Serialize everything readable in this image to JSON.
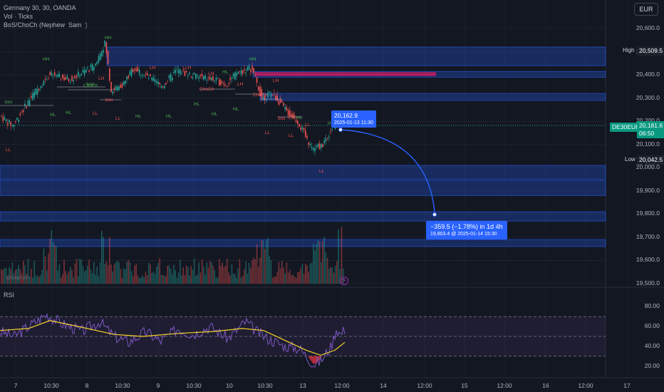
{
  "legend": {
    "symbol": "Germany 30, 30, OANDA",
    "volume": "Vol · Ticks",
    "indicator": "BoS/ChoCh (Nephew_Sam_)",
    "watermark": "@Nephew"
  },
  "currency_button": "EUR",
  "price_scale": [
    "20,600.0",
    "20,500.0",
    "20,400.0",
    "20,300.0",
    "20,200.0",
    "20,100.0",
    "20,000.0",
    "19,900.0",
    "19,800.0",
    "19,700.0",
    "19,600.0",
    "19,500.0"
  ],
  "tags": {
    "high_label": "High",
    "high_value": "20,509.5",
    "low_label": "Low",
    "low_value": "20,042.5",
    "symbol_tag": "DE30EUR",
    "current_price": "20,181.6",
    "countdown": "06:50"
  },
  "rsi": {
    "label": "RSI",
    "scale": [
      "80.00",
      "60.00",
      "40.00",
      "20.00"
    ]
  },
  "time_axis": [
    "7",
    "10:30",
    "8",
    "10:30",
    "9",
    "10:30",
    "10",
    "10:30",
    "13",
    "12:00",
    "14",
    "12:00",
    "15",
    "12:00",
    "16",
    "12:00",
    "17"
  ],
  "annotations": {
    "price_point": "20,162.9",
    "price_point_date": "2025-01-13  11:30",
    "projection": "−359.5 (−1.78%) in 1d 4h",
    "projection_detail": "19,803.4 @ 2025-01-14  15:30"
  },
  "chart_labels": {
    "hh": "HH",
    "lh": "LH",
    "hl": "HL",
    "ll": "LL",
    "bos": "bos",
    "choch": "ChoCh"
  },
  "colors": {
    "background": "#131722",
    "bull": "#26a69a",
    "bear": "#ef5350",
    "zone": "#2962ff",
    "supply_zone": "#d81b60",
    "rsi_line": "#7e57c2",
    "rsi_ma": "#f5d32a"
  },
  "chart_data": [
    {
      "type": "candlestick",
      "title": "Germany 30, 30, OANDA",
      "ylim": [
        19450,
        20650
      ],
      "high": 20509.5,
      "low": 20042.5,
      "last": 20181.6,
      "zones": [
        {
          "from": 20440,
          "to": 20520
        },
        {
          "from": 20390,
          "to": 20415
        },
        {
          "from": 20290,
          "to": 20320
        },
        {
          "from": 19950,
          "to": 20010
        },
        {
          "from": 19880,
          "to": 19945
        },
        {
          "from": 19770,
          "to": 19810
        },
        {
          "from": 19660,
          "to": 19690
        }
      ],
      "supply_zone": {
        "from": 20395,
        "to": 20412
      },
      "projection": {
        "from": 20162.9,
        "to": 19803.4,
        "change": -359.5,
        "change_pct": -1.78
      }
    },
    {
      "type": "line",
      "title": "RSI",
      "ylim": [
        14,
        86
      ],
      "guides": [
        70,
        50,
        30
      ]
    }
  ]
}
